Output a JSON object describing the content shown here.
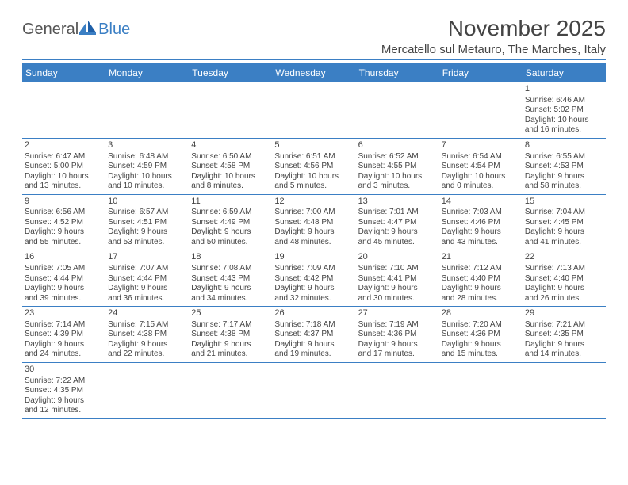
{
  "logo": {
    "general": "General",
    "blue": "Blue"
  },
  "title": "November 2025",
  "location": "Mercatello sul Metauro, The Marches, Italy",
  "colors": {
    "accent": "#3b7fc4",
    "text": "#444444",
    "bg": "#ffffff"
  },
  "day_headers": [
    "Sunday",
    "Monday",
    "Tuesday",
    "Wednesday",
    "Thursday",
    "Friday",
    "Saturday"
  ],
  "weeks": [
    [
      {},
      {},
      {},
      {},
      {},
      {},
      {
        "n": "1",
        "sr": "Sunrise: 6:46 AM",
        "ss": "Sunset: 5:02 PM",
        "d1": "Daylight: 10 hours",
        "d2": "and 16 minutes."
      }
    ],
    [
      {
        "n": "2",
        "sr": "Sunrise: 6:47 AM",
        "ss": "Sunset: 5:00 PM",
        "d1": "Daylight: 10 hours",
        "d2": "and 13 minutes."
      },
      {
        "n": "3",
        "sr": "Sunrise: 6:48 AM",
        "ss": "Sunset: 4:59 PM",
        "d1": "Daylight: 10 hours",
        "d2": "and 10 minutes."
      },
      {
        "n": "4",
        "sr": "Sunrise: 6:50 AM",
        "ss": "Sunset: 4:58 PM",
        "d1": "Daylight: 10 hours",
        "d2": "and 8 minutes."
      },
      {
        "n": "5",
        "sr": "Sunrise: 6:51 AM",
        "ss": "Sunset: 4:56 PM",
        "d1": "Daylight: 10 hours",
        "d2": "and 5 minutes."
      },
      {
        "n": "6",
        "sr": "Sunrise: 6:52 AM",
        "ss": "Sunset: 4:55 PM",
        "d1": "Daylight: 10 hours",
        "d2": "and 3 minutes."
      },
      {
        "n": "7",
        "sr": "Sunrise: 6:54 AM",
        "ss": "Sunset: 4:54 PM",
        "d1": "Daylight: 10 hours",
        "d2": "and 0 minutes."
      },
      {
        "n": "8",
        "sr": "Sunrise: 6:55 AM",
        "ss": "Sunset: 4:53 PM",
        "d1": "Daylight: 9 hours",
        "d2": "and 58 minutes."
      }
    ],
    [
      {
        "n": "9",
        "sr": "Sunrise: 6:56 AM",
        "ss": "Sunset: 4:52 PM",
        "d1": "Daylight: 9 hours",
        "d2": "and 55 minutes."
      },
      {
        "n": "10",
        "sr": "Sunrise: 6:57 AM",
        "ss": "Sunset: 4:51 PM",
        "d1": "Daylight: 9 hours",
        "d2": "and 53 minutes."
      },
      {
        "n": "11",
        "sr": "Sunrise: 6:59 AM",
        "ss": "Sunset: 4:49 PM",
        "d1": "Daylight: 9 hours",
        "d2": "and 50 minutes."
      },
      {
        "n": "12",
        "sr": "Sunrise: 7:00 AM",
        "ss": "Sunset: 4:48 PM",
        "d1": "Daylight: 9 hours",
        "d2": "and 48 minutes."
      },
      {
        "n": "13",
        "sr": "Sunrise: 7:01 AM",
        "ss": "Sunset: 4:47 PM",
        "d1": "Daylight: 9 hours",
        "d2": "and 45 minutes."
      },
      {
        "n": "14",
        "sr": "Sunrise: 7:03 AM",
        "ss": "Sunset: 4:46 PM",
        "d1": "Daylight: 9 hours",
        "d2": "and 43 minutes."
      },
      {
        "n": "15",
        "sr": "Sunrise: 7:04 AM",
        "ss": "Sunset: 4:45 PM",
        "d1": "Daylight: 9 hours",
        "d2": "and 41 minutes."
      }
    ],
    [
      {
        "n": "16",
        "sr": "Sunrise: 7:05 AM",
        "ss": "Sunset: 4:44 PM",
        "d1": "Daylight: 9 hours",
        "d2": "and 39 minutes."
      },
      {
        "n": "17",
        "sr": "Sunrise: 7:07 AM",
        "ss": "Sunset: 4:44 PM",
        "d1": "Daylight: 9 hours",
        "d2": "and 36 minutes."
      },
      {
        "n": "18",
        "sr": "Sunrise: 7:08 AM",
        "ss": "Sunset: 4:43 PM",
        "d1": "Daylight: 9 hours",
        "d2": "and 34 minutes."
      },
      {
        "n": "19",
        "sr": "Sunrise: 7:09 AM",
        "ss": "Sunset: 4:42 PM",
        "d1": "Daylight: 9 hours",
        "d2": "and 32 minutes."
      },
      {
        "n": "20",
        "sr": "Sunrise: 7:10 AM",
        "ss": "Sunset: 4:41 PM",
        "d1": "Daylight: 9 hours",
        "d2": "and 30 minutes."
      },
      {
        "n": "21",
        "sr": "Sunrise: 7:12 AM",
        "ss": "Sunset: 4:40 PM",
        "d1": "Daylight: 9 hours",
        "d2": "and 28 minutes."
      },
      {
        "n": "22",
        "sr": "Sunrise: 7:13 AM",
        "ss": "Sunset: 4:40 PM",
        "d1": "Daylight: 9 hours",
        "d2": "and 26 minutes."
      }
    ],
    [
      {
        "n": "23",
        "sr": "Sunrise: 7:14 AM",
        "ss": "Sunset: 4:39 PM",
        "d1": "Daylight: 9 hours",
        "d2": "and 24 minutes."
      },
      {
        "n": "24",
        "sr": "Sunrise: 7:15 AM",
        "ss": "Sunset: 4:38 PM",
        "d1": "Daylight: 9 hours",
        "d2": "and 22 minutes."
      },
      {
        "n": "25",
        "sr": "Sunrise: 7:17 AM",
        "ss": "Sunset: 4:38 PM",
        "d1": "Daylight: 9 hours",
        "d2": "and 21 minutes."
      },
      {
        "n": "26",
        "sr": "Sunrise: 7:18 AM",
        "ss": "Sunset: 4:37 PM",
        "d1": "Daylight: 9 hours",
        "d2": "and 19 minutes."
      },
      {
        "n": "27",
        "sr": "Sunrise: 7:19 AM",
        "ss": "Sunset: 4:36 PM",
        "d1": "Daylight: 9 hours",
        "d2": "and 17 minutes."
      },
      {
        "n": "28",
        "sr": "Sunrise: 7:20 AM",
        "ss": "Sunset: 4:36 PM",
        "d1": "Daylight: 9 hours",
        "d2": "and 15 minutes."
      },
      {
        "n": "29",
        "sr": "Sunrise: 7:21 AM",
        "ss": "Sunset: 4:35 PM",
        "d1": "Daylight: 9 hours",
        "d2": "and 14 minutes."
      }
    ],
    [
      {
        "n": "30",
        "sr": "Sunrise: 7:22 AM",
        "ss": "Sunset: 4:35 PM",
        "d1": "Daylight: 9 hours",
        "d2": "and 12 minutes."
      },
      {},
      {},
      {},
      {},
      {},
      {}
    ]
  ]
}
